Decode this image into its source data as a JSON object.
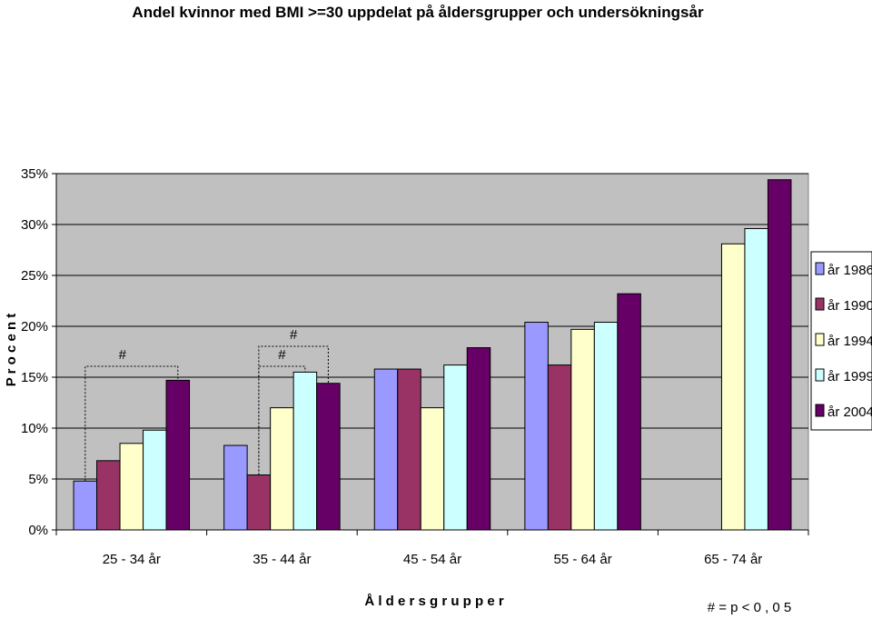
{
  "chart_data": {
    "type": "bar",
    "title": "Andel kvinnor med BMI >=30 uppdelat på åldersgrupper och undersökningsår",
    "xlabel": "Å l d e r s g r u p p e r",
    "ylabel": "P r o c e n t",
    "categories": [
      "25 - 34 år",
      "35 - 44 år",
      "45 - 54 år",
      "55 - 64 år",
      "65 - 74 år"
    ],
    "ylim": [
      0,
      0.35
    ],
    "yticks": [
      0,
      0.05,
      0.1,
      0.15,
      0.2,
      0.25,
      0.3,
      0.35
    ],
    "ytick_labels": [
      "0%",
      "5%",
      "10%",
      "15%",
      "20%",
      "25%",
      "30%",
      "35%"
    ],
    "grid": true,
    "legend_position": "right",
    "series": [
      {
        "name": "år 1986",
        "color": "#9999FF",
        "values": [
          0.048,
          0.083,
          0.158,
          0.204,
          null
        ]
      },
      {
        "name": "år 1990",
        "color": "#993366",
        "values": [
          0.068,
          0.054,
          0.158,
          0.162,
          null
        ]
      },
      {
        "name": "år 1994",
        "color": "#FFFFCC",
        "values": [
          0.085,
          0.12,
          0.12,
          0.197,
          0.281
        ]
      },
      {
        "name": "år 1999",
        "color": "#CCFFFF",
        "values": [
          0.098,
          0.155,
          0.162,
          0.204,
          0.296
        ]
      },
      {
        "name": "år 2004",
        "color": "#660066",
        "values": [
          0.147,
          0.144,
          0.179,
          0.232,
          0.344
        ]
      }
    ],
    "significance_marks": [
      {
        "label": "#",
        "category": 0,
        "from_series": 0,
        "to_series": 4
      },
      {
        "label": "#",
        "category": 1,
        "from_series": 1,
        "to_series": 4
      },
      {
        "label": "#",
        "category": 1,
        "from_series": 1,
        "to_series": 3
      }
    ],
    "footnote": "# = p < 0 , 0 5",
    "plot_background": "#C0C0C0"
  }
}
